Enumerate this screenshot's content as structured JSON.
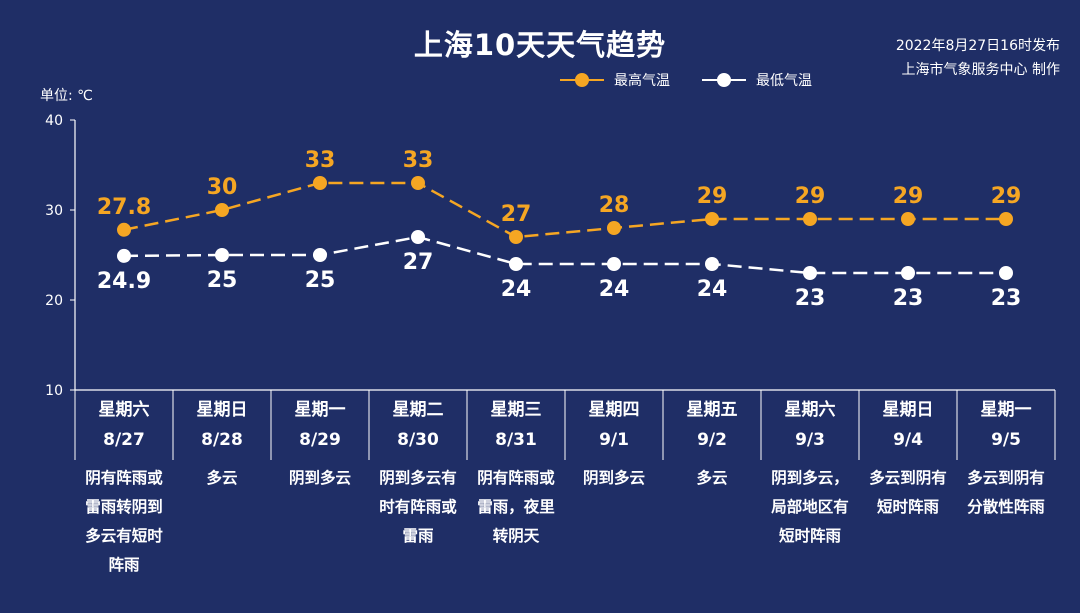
{
  "header": {
    "title": "上海10天天气趋势",
    "publish_line1": "2022年8月27日16时发布",
    "publish_line2": "上海市气象服务中心 制作"
  },
  "colors": {
    "high": "#f5a623",
    "low": "#ffffff",
    "background": "#1f2e66"
  },
  "chart_data": {
    "type": "line",
    "title": "上海10天天气趋势",
    "ylabel": "单位: ℃",
    "ylim": [
      10,
      40
    ],
    "yticks": [
      "10",
      "20",
      "30",
      "40"
    ],
    "categories": [
      "8/27",
      "8/28",
      "8/29",
      "8/30",
      "8/31",
      "9/1",
      "9/2",
      "9/3",
      "9/4",
      "9/5"
    ],
    "weekdays": [
      "星期六",
      "星期日",
      "星期一",
      "星期二",
      "星期三",
      "星期四",
      "星期五",
      "星期六",
      "星期日",
      "星期一"
    ],
    "descriptions": [
      "阴有阵雨或雷雨转阴到多云有短时阵雨",
      "多云",
      "阴到多云",
      "阴到多云有时有阵雨或雷雨",
      "阴有阵雨或雷雨，夜里转阴天",
      "阴到多云",
      "多云",
      "阴到多云，局部地区有短时阵雨",
      "多云到阴有短时阵雨",
      "多云到阴有分散性阵雨"
    ],
    "legend_position": "top-center",
    "series": [
      {
        "name": "最高气温",
        "values": [
          27.8,
          30,
          33,
          33,
          27,
          28,
          29,
          29,
          29,
          29
        ],
        "labels": [
          "27.8",
          "30",
          "33",
          "33",
          "27",
          "28",
          "29",
          "29",
          "29",
          "29"
        ]
      },
      {
        "name": "最低气温",
        "values": [
          24.9,
          25,
          25,
          27,
          24,
          24,
          24,
          23,
          23,
          23
        ],
        "labels": [
          "24.9",
          "25",
          "25",
          "27",
          "24",
          "24",
          "24",
          "23",
          "23",
          "23"
        ]
      }
    ]
  }
}
